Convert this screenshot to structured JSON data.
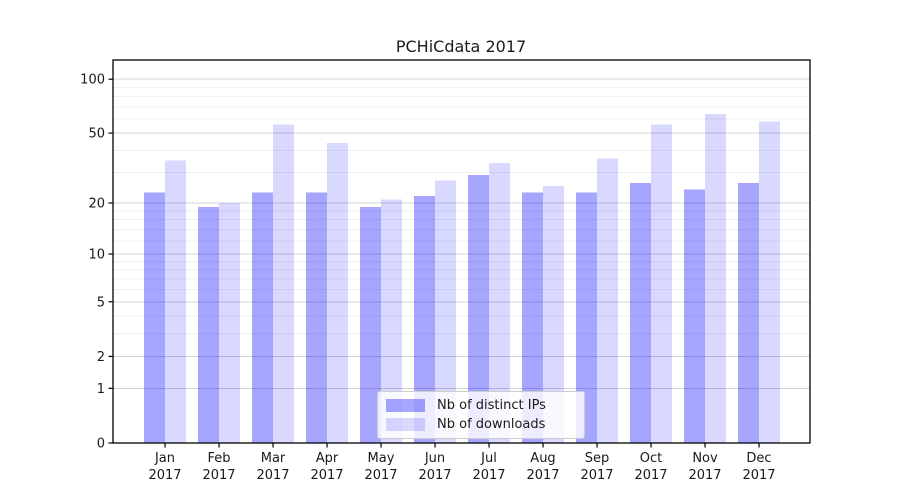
{
  "title": "PCHiCdata 2017",
  "chart_data": {
    "type": "bar",
    "title": "PCHiCdata 2017",
    "categories": [
      "Jan",
      "Feb",
      "Mar",
      "Apr",
      "May",
      "Jun",
      "Jul",
      "Aug",
      "Sep",
      "Oct",
      "Nov",
      "Dec"
    ],
    "x_year_label": "2017",
    "series": [
      {
        "name": "Nb of distinct IPs",
        "color": "#0000FF59",
        "values": [
          23,
          19,
          23,
          23,
          19,
          22,
          29,
          23,
          23,
          26,
          24,
          26
        ]
      },
      {
        "name": "Nb of downloads",
        "color": "#0000FF26",
        "values": [
          35,
          20,
          56,
          44,
          21,
          27,
          34,
          25,
          36,
          56,
          64,
          58
        ]
      }
    ],
    "y_scale": "log1p",
    "y_major_ticks": [
      0,
      1,
      2,
      5,
      10,
      20,
      50,
      100
    ],
    "y_minor_ticks": [
      3,
      4,
      6,
      7,
      8,
      9,
      12,
      14,
      16,
      18,
      30,
      40,
      60,
      70,
      80,
      90
    ],
    "ylim": [
      0,
      127
    ],
    "grid": true,
    "legend_position": "lower center"
  }
}
